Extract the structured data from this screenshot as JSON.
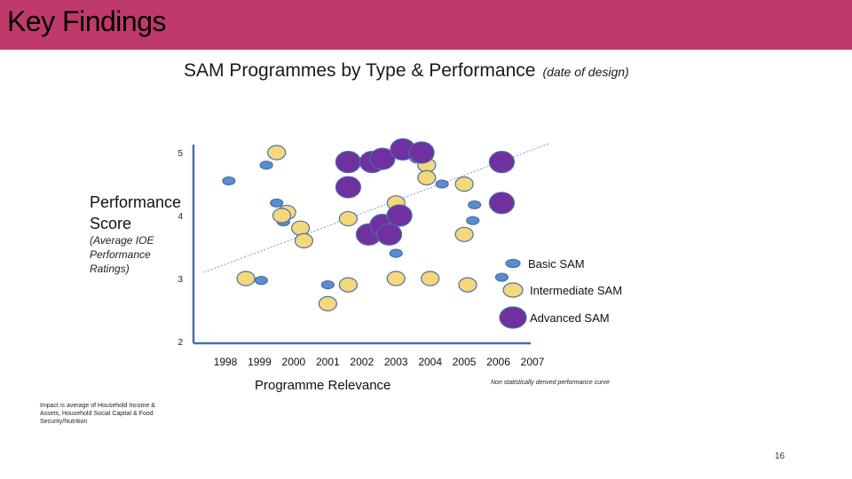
{
  "header": {
    "title": "Key Findings",
    "bar_color": "#bf3a6b"
  },
  "chart_data": {
    "type": "scatter",
    "title": "SAM Programmes by Type & Performance",
    "subtitle": "(date of design)",
    "ylabel": "Performance Score",
    "ylabel_sub": "(Average IOE Performance Ratings)",
    "xlabel": "Programme Relevance",
    "ylim": [
      2,
      5
    ],
    "yticks": [
      5,
      4,
      3,
      2
    ],
    "xticks": [
      "1998",
      "1999",
      "2000",
      "2001",
      "2002",
      "2003",
      "2004",
      "2005",
      "2006",
      "2007"
    ],
    "trendline_note": "Non statistically derived performance curve",
    "legend_position": "right",
    "series": [
      {
        "name": "Basic SAM",
        "color": "#5b8ccf",
        "points": [
          {
            "x": 1998.1,
            "y": 4.55
          },
          {
            "x": 1999.2,
            "y": 4.8
          },
          {
            "x": 1999.5,
            "y": 4.2
          },
          {
            "x": 1999.7,
            "y": 3.9
          },
          {
            "x": 1999.05,
            "y": 2.97
          },
          {
            "x": 2001.0,
            "y": 2.9
          },
          {
            "x": 2003.0,
            "y": 3.4
          },
          {
            "x": 2003.6,
            "y": 4.9
          },
          {
            "x": 2004.35,
            "y": 4.5
          },
          {
            "x": 2005.3,
            "y": 4.17
          },
          {
            "x": 2005.25,
            "y": 3.92
          },
          {
            "x": 2006.1,
            "y": 3.02
          }
        ]
      },
      {
        "name": "Intermediate SAM",
        "color": "#f5d87a",
        "points": [
          {
            "x": 1998.6,
            "y": 3.0
          },
          {
            "x": 1999.5,
            "y": 5.0
          },
          {
            "x": 1999.8,
            "y": 4.05
          },
          {
            "x": 1999.65,
            "y": 4.0
          },
          {
            "x": 2000.2,
            "y": 3.8
          },
          {
            "x": 2000.3,
            "y": 3.6
          },
          {
            "x": 2001.0,
            "y": 2.6
          },
          {
            "x": 2001.6,
            "y": 3.95
          },
          {
            "x": 2001.6,
            "y": 2.9
          },
          {
            "x": 2003.0,
            "y": 4.2
          },
          {
            "x": 2003.0,
            "y": 3.0
          },
          {
            "x": 2003.9,
            "y": 4.8
          },
          {
            "x": 2003.9,
            "y": 4.6
          },
          {
            "x": 2004.0,
            "y": 3.0
          },
          {
            "x": 2005.0,
            "y": 4.5
          },
          {
            "x": 2005.0,
            "y": 3.7
          },
          {
            "x": 2005.1,
            "y": 2.9
          }
        ]
      },
      {
        "name": "Advanced SAM",
        "color": "#7030a0",
        "points": [
          {
            "x": 2001.6,
            "y": 4.85
          },
          {
            "x": 2001.6,
            "y": 4.45
          },
          {
            "x": 2002.3,
            "y": 4.85
          },
          {
            "x": 2002.6,
            "y": 4.9
          },
          {
            "x": 2002.2,
            "y": 3.7
          },
          {
            "x": 2002.6,
            "y": 3.85
          },
          {
            "x": 2002.8,
            "y": 3.7
          },
          {
            "x": 2003.2,
            "y": 5.05
          },
          {
            "x": 2003.1,
            "y": 4.0
          },
          {
            "x": 2003.75,
            "y": 5.0
          },
          {
            "x": 2006.1,
            "y": 4.85
          },
          {
            "x": 2006.1,
            "y": 4.2
          }
        ]
      }
    ],
    "trendline": {
      "x": [
        1998,
        2007
      ],
      "y": [
        3.1,
        5.15
      ]
    }
  },
  "footer": {
    "impact_note": "Impact is average of Household Income & Assets, Household Social Capital & Food Security/Nutrition",
    "page_number": "16"
  }
}
